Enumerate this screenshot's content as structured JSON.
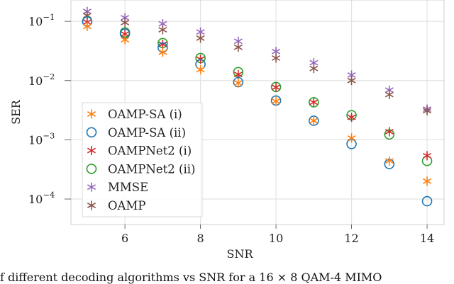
{
  "chart_data": {
    "type": "scatter",
    "title": "",
    "xlabel": "SNR",
    "ylabel": "SER",
    "yscale": "log",
    "xlim": [
      4.57,
      14.45
    ],
    "ylim_log10": [
      -4.43,
      -0.64
    ],
    "grid": true,
    "legend_position": "lower-left",
    "x_ticks": [
      6,
      8,
      10,
      12,
      14
    ],
    "x_tick_labels": [
      "6",
      "8",
      "10",
      "12",
      "14"
    ],
    "y_ticks_log10": [
      -1,
      -2,
      -3,
      -4
    ],
    "y_tick_labels": [
      {
        "base": "10",
        "exp": "−1"
      },
      {
        "base": "10",
        "exp": "−2"
      },
      {
        "base": "10",
        "exp": "−3"
      },
      {
        "base": "10",
        "exp": "−4"
      }
    ],
    "x": [
      5,
      6,
      7,
      8,
      9,
      10,
      11,
      12,
      13,
      14
    ],
    "series": [
      {
        "name": "MMSE",
        "marker": "asterisk",
        "color": "#9467bd",
        "values": [
          0.147,
          0.115,
          0.091,
          0.066,
          0.046,
          0.031,
          0.02,
          0.0124,
          0.0069,
          0.0033
        ]
      },
      {
        "name": "OAMP",
        "marker": "asterisk",
        "color": "#8c564b",
        "values": [
          0.125,
          0.095,
          0.072,
          0.052,
          0.0365,
          0.024,
          0.016,
          0.01,
          0.0058,
          0.0031
        ]
      },
      {
        "name": "OAMPNet2 (ii)",
        "marker": "circle",
        "color": "#2ca02c",
        "values": [
          0.1,
          0.065,
          0.043,
          0.024,
          0.0139,
          0.0078,
          0.0043,
          0.0026,
          0.00123,
          0.00044
        ]
      },
      {
        "name": "OAMPNet2 (i)",
        "marker": "asterisk",
        "color": "#d62728",
        "values": [
          0.097,
          0.061,
          0.041,
          0.023,
          0.0127,
          0.0077,
          0.0043,
          0.0024,
          0.00137,
          0.00054
        ]
      },
      {
        "name": "OAMP-SA (ii)",
        "marker": "circle",
        "color": "#1f77b4",
        "values": [
          0.099,
          0.062,
          0.036,
          0.0188,
          0.0094,
          0.0046,
          0.0021,
          0.00085,
          0.00039,
          9.2e-05
        ]
      },
      {
        "name": "OAMP-SA (i)",
        "marker": "asterisk",
        "color": "#ff7f0e",
        "values": [
          0.082,
          0.049,
          0.03,
          0.0153,
          0.0091,
          0.0045,
          0.0021,
          0.00107,
          0.00044,
          0.0002
        ]
      }
    ],
    "legend_order": [
      "OAMP-SA (i)",
      "OAMP-SA (ii)",
      "OAMPNet2 (i)",
      "OAMPNet2 (ii)",
      "MMSE",
      "OAMP"
    ]
  },
  "caption": "f different decoding algorithms vs SNR for a 16 × 8 QAM-4 MIMO"
}
